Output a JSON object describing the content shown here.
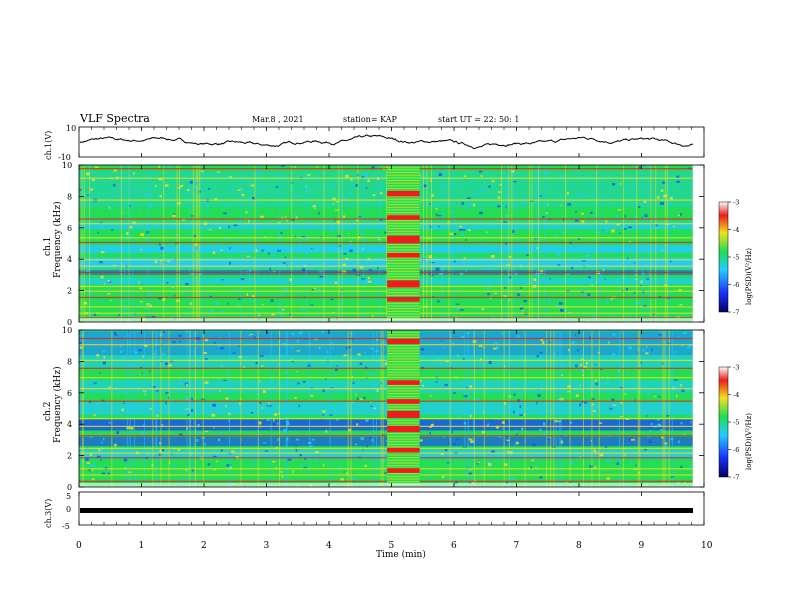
{
  "header": {
    "title": "VLF Spectra",
    "date": "Mar.8 , 2021",
    "station": "station= KAP",
    "start": "start  UT =   22: 50: 1"
  },
  "chart_data": [
    {
      "type": "line",
      "panel": "ch1-waveform",
      "ylabel": "ch.1(V)",
      "ylim": [
        -10,
        10
      ],
      "yticks": [
        "10",
        "-10"
      ],
      "xlim": [
        0,
        10
      ],
      "description_values": "time-domain voltage trace, fluctuating roughly between -7 and 7 V across 0-9.8 min"
    },
    {
      "type": "heatmap",
      "panel": "ch1-spectrogram",
      "ylabel": "ch.1  Frequency (kHz)",
      "ylim": [
        0,
        10
      ],
      "yticks": [
        "0",
        "2",
        "4",
        "6",
        "8",
        "10"
      ],
      "xlim": [
        0,
        10
      ],
      "colorbar": {
        "label": "log(PSD)(V²/Hz)",
        "range": [
          -7,
          -3
        ],
        "ticks": [
          "-3",
          "-4",
          "-5",
          "-6",
          "-7"
        ]
      }
    },
    {
      "type": "heatmap",
      "panel": "ch2-spectrogram",
      "ylabel": "ch.2  Frequency (kHz)",
      "ylim": [
        0,
        10
      ],
      "yticks": [
        "0",
        "2",
        "4",
        "6",
        "8",
        "10"
      ],
      "xlim": [
        0,
        10
      ],
      "colorbar": {
        "label": "log(PSD)(V²/Hz)",
        "range": [
          -7,
          -3
        ],
        "ticks": [
          "-3",
          "-4",
          "-5",
          "-6",
          "-7"
        ]
      }
    },
    {
      "type": "line",
      "panel": "ch3-waveform",
      "ylabel": "ch.3(V)",
      "ylim": [
        -5,
        5
      ],
      "yticks": [
        "5",
        "0",
        "-5"
      ],
      "xlim": [
        0,
        10
      ],
      "value": -0.5
    }
  ],
  "xaxis": {
    "label": "Time  (min)",
    "ticks": [
      "0",
      "1",
      "2",
      "3",
      "4",
      "5",
      "6",
      "7",
      "8",
      "9",
      "10"
    ]
  },
  "ch1_yaxis_label": "ch.1",
  "ch1_freq_label": "Frequency  (kHz)",
  "ch2_yaxis_label": "ch.2",
  "ch2_freq_label": "Frequency  (kHz)",
  "colors": {
    "trace": "#000000",
    "green": "#22dd55",
    "cyan": "#22ccff",
    "blue": "#1a55ee",
    "yellow": "#f2e21a",
    "red": "#ee1c1c"
  }
}
